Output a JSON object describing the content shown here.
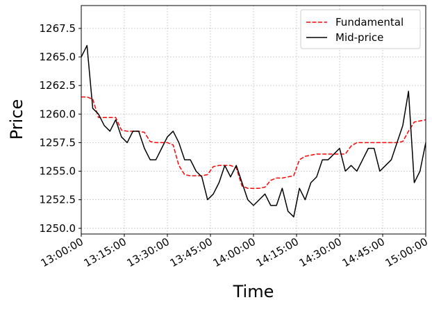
{
  "chart_data": {
    "type": "line",
    "x_label": "Time",
    "y_label": "Price",
    "x": [
      "13:00:00",
      "13:02:00",
      "13:04:00",
      "13:06:00",
      "13:08:00",
      "13:10:00",
      "13:12:00",
      "13:14:00",
      "13:16:00",
      "13:18:00",
      "13:20:00",
      "13:22:00",
      "13:24:00",
      "13:26:00",
      "13:28:00",
      "13:30:00",
      "13:32:00",
      "13:34:00",
      "13:36:00",
      "13:38:00",
      "13:40:00",
      "13:42:00",
      "13:44:00",
      "13:46:00",
      "13:48:00",
      "13:50:00",
      "13:52:00",
      "13:54:00",
      "13:56:00",
      "13:58:00",
      "14:00:00",
      "14:02:00",
      "14:04:00",
      "14:06:00",
      "14:08:00",
      "14:10:00",
      "14:12:00",
      "14:14:00",
      "14:16:00",
      "14:18:00",
      "14:20:00",
      "14:22:00",
      "14:24:00",
      "14:26:00",
      "14:28:00",
      "14:30:00",
      "14:32:00",
      "14:34:00",
      "14:36:00",
      "14:38:00",
      "14:40:00",
      "14:42:00",
      "14:44:00",
      "14:46:00",
      "14:48:00",
      "14:50:00",
      "14:52:00",
      "14:54:00",
      "14:56:00",
      "14:58:00",
      "15:00:00"
    ],
    "series": [
      {
        "name": "Fundamental",
        "color": "#ff0000",
        "dashed": true,
        "values": [
          1261.5,
          1261.5,
          1261.3,
          1259.7,
          1259.7,
          1259.7,
          1259.7,
          1258.6,
          1258.5,
          1258.5,
          1258.5,
          1258.4,
          1257.6,
          1257.5,
          1257.5,
          1257.5,
          1257.3,
          1255.5,
          1254.7,
          1254.6,
          1254.6,
          1254.6,
          1254.7,
          1255.4,
          1255.5,
          1255.5,
          1255.5,
          1255.3,
          1253.7,
          1253.5,
          1253.5,
          1253.5,
          1253.6,
          1254.2,
          1254.4,
          1254.4,
          1254.5,
          1254.6,
          1256,
          1256.3,
          1256.4,
          1256.5,
          1256.5,
          1256.5,
          1256.5,
          1256.5,
          1256.5,
          1257.2,
          1257.5,
          1257.5,
          1257.5,
          1257.5,
          1257.5,
          1257.5,
          1257.5,
          1257.5,
          1257.6,
          1258.5,
          1259.3,
          1259.4,
          1259.5
        ]
      },
      {
        "name": "Mid-price",
        "color": "#000000",
        "dashed": false,
        "values": [
          1265,
          1266,
          1260.5,
          1260,
          1259,
          1258.5,
          1259.5,
          1258,
          1257.5,
          1258.5,
          1258.5,
          1257,
          1256,
          1256,
          1257,
          1258,
          1258.5,
          1257.5,
          1256,
          1256,
          1255,
          1254.5,
          1252.5,
          1253,
          1254,
          1255.5,
          1254.5,
          1255.5,
          1254,
          1252.5,
          1252,
          1252.5,
          1253,
          1252,
          1252,
          1253.5,
          1251.5,
          1251,
          1253.5,
          1252.5,
          1254,
          1254.5,
          1256,
          1256,
          1256.5,
          1257,
          1255,
          1255.5,
          1255,
          1256,
          1257,
          1257,
          1255,
          1255.5,
          1256,
          1257.5,
          1259,
          1262,
          1254,
          1255,
          1257.5
        ]
      }
    ],
    "xlim": [
      "13:00:00",
      "15:00:00"
    ],
    "xticks": [
      "13:00:00",
      "13:15:00",
      "13:30:00",
      "13:45:00",
      "14:00:00",
      "14:15:00",
      "14:30:00",
      "14:45:00",
      "15:00:00"
    ],
    "ylim": [
      1249.5,
      1269.5
    ],
    "yticks": [
      {
        "value": 1250,
        "label": "1250.0"
      },
      1252.5,
      {
        "value": 1255,
        "label": "1255.0"
      },
      1257.5,
      {
        "value": 1260,
        "label": "1260.0"
      },
      1262.5,
      {
        "value": 1265,
        "label": "1265.0"
      },
      1267.5
    ],
    "grid": true,
    "legend": "upper right"
  }
}
